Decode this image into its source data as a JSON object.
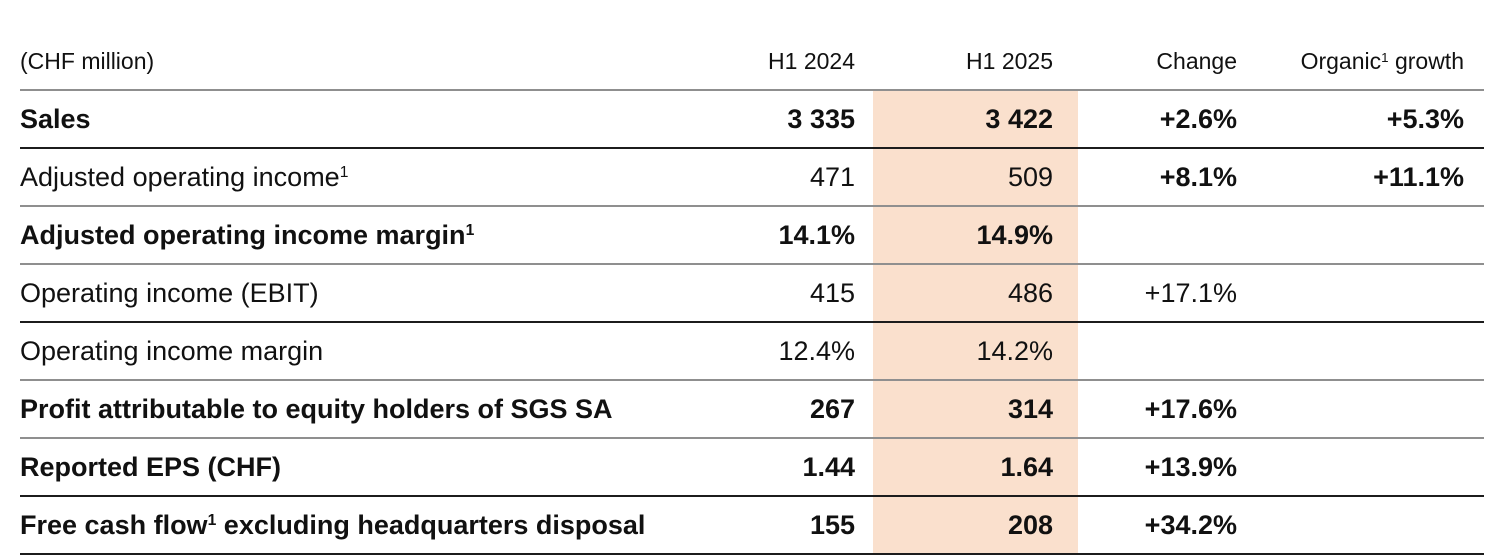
{
  "table": {
    "title_hint": "Half-year key financial figures",
    "highlight_color": "#fae0cd",
    "header": {
      "unit": "(CHF million)",
      "h1_2024": "H1 2024",
      "h1_2025": "H1 2025",
      "change": "Change",
      "organic_pre": "Organic",
      "organic_sup": "1",
      "organic_post": " growth"
    },
    "rows": [
      {
        "label_pre": "Sales",
        "h1_2024": "3 335",
        "h1_2025": "3 422",
        "change": "+2.6%",
        "organic": "+5.3%"
      },
      {
        "label_pre": "Adjusted operating income",
        "label_sup": "1",
        "h1_2024": "471",
        "h1_2025": "509",
        "change": "+8.1%",
        "organic": "+11.1%"
      },
      {
        "label_pre": "Adjusted operating income margin",
        "label_sup": "1",
        "h1_2024": "14.1%",
        "h1_2025": "14.9%",
        "change": "",
        "organic": ""
      },
      {
        "label_pre": "Operating income (EBIT)",
        "h1_2024": "415",
        "h1_2025": "486",
        "change": "+17.1%",
        "organic": ""
      },
      {
        "label_pre": "Operating income margin",
        "h1_2024": "12.4%",
        "h1_2025": "14.2%",
        "change": "",
        "organic": ""
      },
      {
        "label_pre": "Profit attributable to equity holders of SGS SA",
        "h1_2024": "267",
        "h1_2025": "314",
        "change": "+17.6%",
        "organic": ""
      },
      {
        "label_pre": "Reported EPS (CHF)",
        "h1_2024": "1.44",
        "h1_2025": "1.64",
        "change": "+13.9%",
        "organic": ""
      },
      {
        "label_pre": "Free cash flow",
        "label_sup": "1",
        "label_post": " excluding headquarters disposal",
        "h1_2024": "155",
        "h1_2025": "208",
        "change": "+34.2%",
        "organic": ""
      }
    ]
  }
}
